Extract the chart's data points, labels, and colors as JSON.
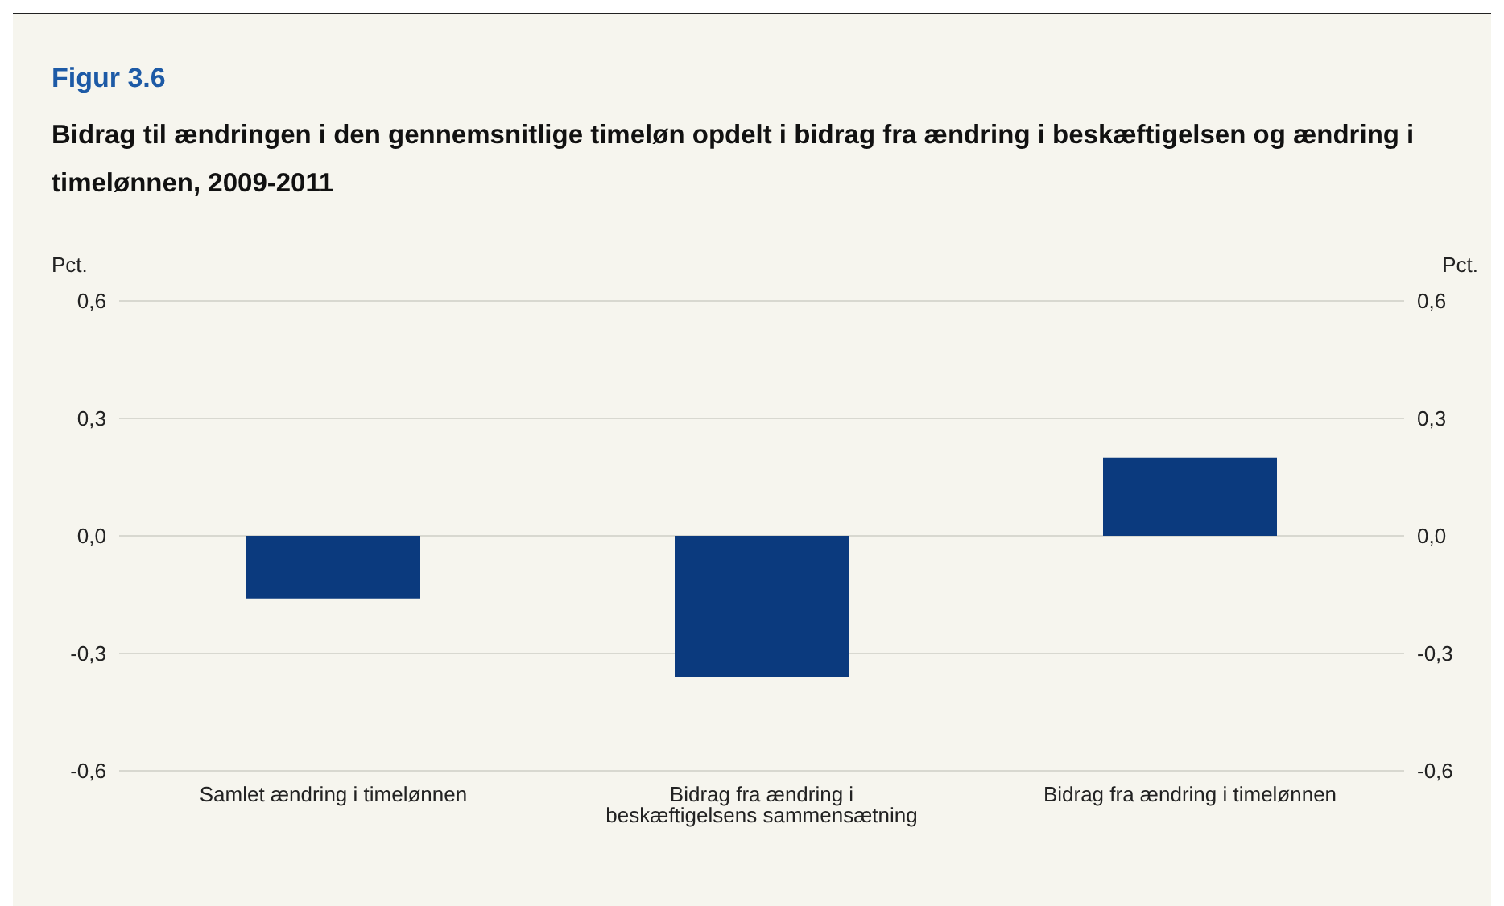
{
  "chart_data": {
    "type": "bar",
    "title": "Figur 3.6",
    "subtitle": "Bidrag til ændringen i den gennemsnitlige timeløn opdelt i bidrag fra ændring i beskæftigelsen og ændring i timelønnen, 2009-2011",
    "ylabel": "Pct.",
    "y2label": "Pct.",
    "categories": [
      "Samlet ændring i timelønnen",
      "Bidrag fra ændring i beskæftigelsens sammensætning",
      "Bidrag fra ændring i timelønnen"
    ],
    "series": [
      {
        "color": "#0b3a7e",
        "values": [
          -0.16,
          -0.36,
          0.2
        ]
      }
    ],
    "ylim": [
      -0.6,
      0.6
    ],
    "yticks": [
      {
        "value": -0.6,
        "label": "-0,6"
      },
      {
        "value": -0.3,
        "label": "-0,3"
      },
      {
        "value": 0,
        "label": "0,0"
      },
      {
        "value": 0.3,
        "label": "0,3"
      },
      {
        "value": 0.6,
        "label": "0,6"
      }
    ],
    "y2lim": [
      -0.6,
      0.6
    ],
    "y2ticks": [
      {
        "value": -0.6,
        "label": "-0,6"
      },
      {
        "value": -0.3,
        "label": "-0,3"
      },
      {
        "value": 0,
        "label": "0,0"
      },
      {
        "value": 0.3,
        "label": "0,3"
      },
      {
        "value": 0.6,
        "label": "0,6"
      }
    ],
    "grid": "y",
    "legend": false
  }
}
